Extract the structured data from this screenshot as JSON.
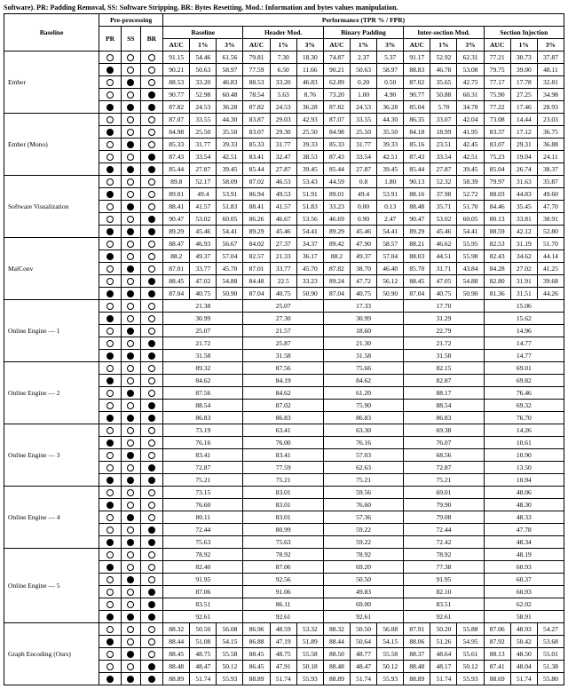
{
  "caption": "Software). PR: Padding Removal, SS: Software Stripping, BR: Bytes Resetting, Mod.: Information and bytes values manipulation.",
  "header": {
    "baseline": "Baseline",
    "preproc": "Pre-processing",
    "perf": "Performance (TPR % / FPR)",
    "preproc_cols": [
      "PR",
      "SS",
      "BR"
    ],
    "chunks": [
      "Baseline",
      "Header Mod.",
      "Binary Padding",
      "Inter-section Mod.",
      "Section Injection"
    ],
    "sub": [
      "AUC",
      "1%",
      "3%"
    ]
  },
  "groups": [
    {
      "name": "Ember",
      "rows": [
        {
          "pp": [
            0,
            0,
            0
          ],
          "v": [
            "91.15",
            "54.46",
            "61.56",
            "79.81",
            "7.30",
            "18.30",
            "74.87",
            "2.37",
            "5.37",
            "91.17",
            "52.92",
            "62.31",
            "77.21",
            "30.73",
            "37.87"
          ]
        },
        {
          "pp": [
            1,
            0,
            0
          ],
          "v": [
            "90.21",
            "50.63",
            "58.97",
            "77.59",
            "6.50",
            "11.66",
            "90.21",
            "50.63",
            "58.97",
            "88.83",
            "46.78",
            "53.08",
            "79.75",
            "39.00",
            "48.11"
          ]
        },
        {
          "pp": [
            0,
            1,
            0
          ],
          "v": [
            "88.53",
            "33.20",
            "46.83",
            "88.53",
            "33.20",
            "46.83",
            "62.89",
            "0.20",
            "0.50",
            "87.02",
            "35.65",
            "42.75",
            "77.17",
            "17.78",
            "32.81"
          ]
        },
        {
          "pp": [
            0,
            0,
            1
          ],
          "v": [
            "90.77",
            "52.98",
            "60.48",
            "78.54",
            "5.63",
            "8.76",
            "73.20",
            "1.00",
            "4.90",
            "90.77",
            "50.88",
            "60.31",
            "75.90",
            "27.25",
            "34.98"
          ]
        },
        {
          "pp": [
            1,
            1,
            1
          ],
          "v": [
            "87.82",
            "24.53",
            "36.28",
            "87.82",
            "24.53",
            "36.28",
            "87.82",
            "24.53",
            "36.28",
            "85.04",
            "5.70",
            "34.78",
            "77.22",
            "17.46",
            "28.93"
          ]
        }
      ]
    },
    {
      "name": "Ember (Mono)",
      "rows": [
        {
          "pp": [
            0,
            0,
            0
          ],
          "v": [
            "87.07",
            "33.55",
            "44.30",
            "83.87",
            "29.03",
            "42.93",
            "87.07",
            "33.55",
            "44.30",
            "86.35",
            "33.07",
            "42.04",
            "73.08",
            "14.44",
            "23.03"
          ]
        },
        {
          "pp": [
            1,
            0,
            0
          ],
          "v": [
            "84.98",
            "25.50",
            "35.50",
            "83.07",
            "29.30",
            "25.50",
            "84.98",
            "25.50",
            "35.50",
            "84.18",
            "18.99",
            "41.95",
            "83.37",
            "17.12",
            "36.75"
          ]
        },
        {
          "pp": [
            0,
            1,
            0
          ],
          "v": [
            "85.33",
            "31.77",
            "39.33",
            "85.33",
            "31.77",
            "39.33",
            "85.33",
            "31.77",
            "39.33",
            "85.16",
            "23.51",
            "42.45",
            "83.07",
            "29.31",
            "36.88"
          ]
        },
        {
          "pp": [
            0,
            0,
            1
          ],
          "v": [
            "87.43",
            "33.54",
            "42.51",
            "83.41",
            "32.47",
            "38.53",
            "87.43",
            "33.54",
            "42.51",
            "87.43",
            "33.54",
            "42.51",
            "75.23",
            "19.04",
            "24.11"
          ]
        },
        {
          "pp": [
            1,
            1,
            1
          ],
          "v": [
            "85.44",
            "27.87",
            "39.45",
            "85.44",
            "27.87",
            "39.45",
            "85.44",
            "27.87",
            "39.45",
            "85.44",
            "27.87",
            "39.45",
            "85.04",
            "26.74",
            "38.37"
          ]
        }
      ]
    },
    {
      "name": "Software Visualization",
      "rows": [
        {
          "pp": [
            0,
            0,
            0
          ],
          "v": [
            "89.8",
            "52.17",
            "58.09",
            "87.02",
            "46.53",
            "53.43",
            "44.59",
            "0.8",
            "1.80",
            "90.13",
            "52.32",
            "58.39",
            "79.97",
            "31.63",
            "35.87"
          ]
        },
        {
          "pp": [
            1,
            0,
            0
          ],
          "v": [
            "89.01",
            "49.4",
            "53.91",
            "86.94",
            "49.53",
            "51.91",
            "89.01",
            "49.4",
            "53.91",
            "88.16",
            "37.98",
            "52.72",
            "88.03",
            "44.83",
            "49.60"
          ]
        },
        {
          "pp": [
            0,
            1,
            0
          ],
          "v": [
            "88.41",
            "41.57",
            "51.83",
            "88.41",
            "41.57",
            "51.83",
            "33.23",
            "0.00",
            "0.13",
            "88.48",
            "35.71",
            "51.70",
            "84.46",
            "35.45",
            "47.70"
          ]
        },
        {
          "pp": [
            0,
            0,
            1
          ],
          "v": [
            "90.47",
            "53.02",
            "60.05",
            "86.26",
            "46.67",
            "53.56",
            "46.69",
            "0.90",
            "2.47",
            "90.47",
            "53.02",
            "60.05",
            "80.13",
            "33.81",
            "38.91"
          ]
        },
        {
          "pp": [
            1,
            1,
            1
          ],
          "v": [
            "89.29",
            "45.46",
            "54.41",
            "89.29",
            "45.46",
            "54.41",
            "89.29",
            "45.46",
            "54.41",
            "89.29",
            "45.46",
            "54.41",
            "88.59",
            "42.12",
            "52.80"
          ]
        }
      ]
    },
    {
      "name": "MalConv",
      "rows": [
        {
          "pp": [
            0,
            0,
            0
          ],
          "v": [
            "88.47",
            "46.93",
            "56.67",
            "84.02",
            "27.37",
            "34.37",
            "89.42",
            "47.90",
            "58.57",
            "88.21",
            "46.62",
            "55.95",
            "82.53",
            "31.19",
            "51.70"
          ]
        },
        {
          "pp": [
            1,
            0,
            0
          ],
          "v": [
            "88.2",
            "49.37",
            "57.04",
            "82.57",
            "21.33",
            "36.17",
            "88.2",
            "49.37",
            "57.04",
            "88.03",
            "44.51",
            "55.98",
            "82.43",
            "34.62",
            "44.14"
          ]
        },
        {
          "pp": [
            0,
            1,
            0
          ],
          "v": [
            "87.01",
            "33.77",
            "45.70",
            "87.01",
            "33.77",
            "45.70",
            "87.82",
            "38.70",
            "46.40",
            "85.70",
            "31.71",
            "43.84",
            "84.28",
            "27.02",
            "41.25"
          ]
        },
        {
          "pp": [
            0,
            0,
            1
          ],
          "v": [
            "88.45",
            "47.02",
            "54.88",
            "84.48",
            "22.5",
            "33.23",
            "89.24",
            "47.72",
            "56.12",
            "88.45",
            "47.05",
            "54.88",
            "82.80",
            "31.91",
            "39.68"
          ]
        },
        {
          "pp": [
            1,
            1,
            1
          ],
          "v": [
            "87.04",
            "40.75",
            "50.90",
            "87.04",
            "40.75",
            "50.90",
            "87.04",
            "40.75",
            "50.90",
            "87.04",
            "40.75",
            "50.90",
            "81.36",
            "31.51",
            "44.26"
          ]
        }
      ]
    },
    {
      "name": "Online Engine — 1",
      "merged": true,
      "rows": [
        {
          "pp": [
            0,
            0,
            0
          ],
          "v": [
            "21.38",
            "25.07",
            "17.33",
            "17.70",
            "15.06"
          ]
        },
        {
          "pp": [
            1,
            0,
            0
          ],
          "v": [
            "30.99",
            "27.30",
            "30.99",
            "31.29",
            "15.62"
          ]
        },
        {
          "pp": [
            0,
            1,
            0
          ],
          "v": [
            "25.07",
            "21.57",
            "18.60",
            "22.79",
            "14.96"
          ]
        },
        {
          "pp": [
            0,
            0,
            1
          ],
          "v": [
            "21.72",
            "25.87",
            "21.30",
            "21.72",
            "14.77"
          ]
        },
        {
          "pp": [
            1,
            1,
            1
          ],
          "v": [
            "31.58",
            "31.58",
            "31.58",
            "31.58",
            "14.77"
          ]
        }
      ]
    },
    {
      "name": "Online Engine — 2",
      "merged": true,
      "rows": [
        {
          "pp": [
            0,
            0,
            0
          ],
          "v": [
            "89.32",
            "87.56",
            "75.66",
            "82.15",
            "69.01"
          ]
        },
        {
          "pp": [
            1,
            0,
            0
          ],
          "v": [
            "84.62",
            "84.19",
            "84.62",
            "82.87",
            "69.82"
          ]
        },
        {
          "pp": [
            0,
            1,
            0
          ],
          "v": [
            "87.56",
            "84.62",
            "61.20",
            "88.17",
            "76.46"
          ]
        },
        {
          "pp": [
            0,
            0,
            1
          ],
          "v": [
            "88.54",
            "87.02",
            "75.90",
            "88.54",
            "69.32"
          ]
        },
        {
          "pp": [
            1,
            1,
            1
          ],
          "v": [
            "86.83",
            "86.83",
            "86.83",
            "86.83",
            "76.70"
          ]
        }
      ]
    },
    {
      "name": "Online Engine — 3",
      "merged": true,
      "rows": [
        {
          "pp": [
            0,
            0,
            0
          ],
          "v": [
            "73.19",
            "63.41",
            "63.30",
            "69.38",
            "14.26"
          ]
        },
        {
          "pp": [
            1,
            0,
            0
          ],
          "v": [
            "76.16",
            "76.00",
            "76.16",
            "76.07",
            "10.61"
          ]
        },
        {
          "pp": [
            0,
            1,
            0
          ],
          "v": [
            "83.41",
            "83.41",
            "57.03",
            "68.56",
            "10.90"
          ]
        },
        {
          "pp": [
            0,
            0,
            1
          ],
          "v": [
            "72.87",
            "77.59",
            "62.63",
            "72.87",
            "13.50"
          ]
        },
        {
          "pp": [
            1,
            1,
            1
          ],
          "v": [
            "75.21",
            "75.21",
            "75.21",
            "75.21",
            "10.94"
          ]
        }
      ]
    },
    {
      "name": "Online Engine — 4",
      "merged": true,
      "rows": [
        {
          "pp": [
            0,
            0,
            0
          ],
          "v": [
            "73.15",
            "83.01",
            "59.56",
            "69.01",
            "48.06"
          ]
        },
        {
          "pp": [
            1,
            0,
            0
          ],
          "v": [
            "76.60",
            "83.01",
            "76.60",
            "79.90",
            "48.30"
          ]
        },
        {
          "pp": [
            0,
            1,
            0
          ],
          "v": [
            "80.11",
            "83.01",
            "57.36",
            "79.08",
            "48.33"
          ]
        },
        {
          "pp": [
            0,
            0,
            1
          ],
          "v": [
            "72.44",
            "80.99",
            "59.22",
            "72.44",
            "47.78"
          ]
        },
        {
          "pp": [
            1,
            1,
            1
          ],
          "v": [
            "75.63",
            "75.63",
            "59.22",
            "72.42",
            "48.34"
          ]
        }
      ]
    },
    {
      "name": "Online Engine — 5",
      "merged": true,
      "rows": [
        {
          "pp": [
            0,
            0,
            0
          ],
          "v": [
            "78.92",
            "78.92",
            "78.92",
            "78.92",
            "48.19"
          ]
        },
        {
          "pp": [
            1,
            0,
            0
          ],
          "v": [
            "82.40",
            "87.06",
            "69.20",
            "77.38",
            "60.93"
          ]
        },
        {
          "pp": [
            0,
            1,
            0
          ],
          "v": [
            "91.95",
            "92.56",
            "50.50",
            "91.95",
            "60.37"
          ]
        },
        {
          "pp": [
            0,
            0,
            1
          ],
          "v": [
            "87.06",
            "91.06",
            "49.83",
            "82.10",
            "60.93"
          ]
        },
        {
          "pp": [
            0,
            0,
            1
          ],
          "v": [
            "83.51",
            "86.11",
            "69.00",
            "83.51",
            "62.02"
          ]
        },
        {
          "pp": [
            1,
            1,
            1
          ],
          "v": [
            "92.61",
            "92.61",
            "92.61",
            "92.61",
            "58.91"
          ]
        }
      ]
    },
    {
      "name": "Graph Encoding (Ours)",
      "rows": [
        {
          "pp": [
            0,
            0,
            0
          ],
          "v": [
            "88.32",
            "50.50",
            "56.08",
            "86.96",
            "48.59",
            "53.32",
            "88.32",
            "50.50",
            "56.08",
            "87.91",
            "50.20",
            "55.88",
            "87.06",
            "48.93",
            "54.27"
          ]
        },
        {
          "pp": [
            1,
            0,
            0
          ],
          "v": [
            "88.44",
            "51.08",
            "54.15",
            "86.88",
            "47.19",
            "51.89",
            "88.44",
            "50.64",
            "54.15",
            "88.06",
            "51.26",
            "54.95",
            "87.92",
            "50.42",
            "53.68"
          ]
        },
        {
          "pp": [
            0,
            1,
            0
          ],
          "v": [
            "88.45",
            "48.75",
            "55.58",
            "88.45",
            "48.75",
            "55.58",
            "88.50",
            "48.77",
            "55.58",
            "88.37",
            "48.64",
            "55.61",
            "88.13",
            "48.50",
            "55.01"
          ]
        },
        {
          "pp": [
            0,
            0,
            1
          ],
          "v": [
            "88.48",
            "48.47",
            "50.12",
            "86.45",
            "47.91",
            "50.18",
            "88.48",
            "48.47",
            "50.12",
            "88.48",
            "48.17",
            "50.12",
            "87.41",
            "48.04",
            "51.38"
          ]
        },
        {
          "pp": [
            1,
            1,
            1
          ],
          "v": [
            "88.89",
            "51.74",
            "55.93",
            "88.89",
            "51.74",
            "55.93",
            "88.89",
            "51.74",
            "55.93",
            "88.89",
            "51.74",
            "55.93",
            "88.69",
            "51.74",
            "55.80"
          ]
        }
      ]
    }
  ]
}
